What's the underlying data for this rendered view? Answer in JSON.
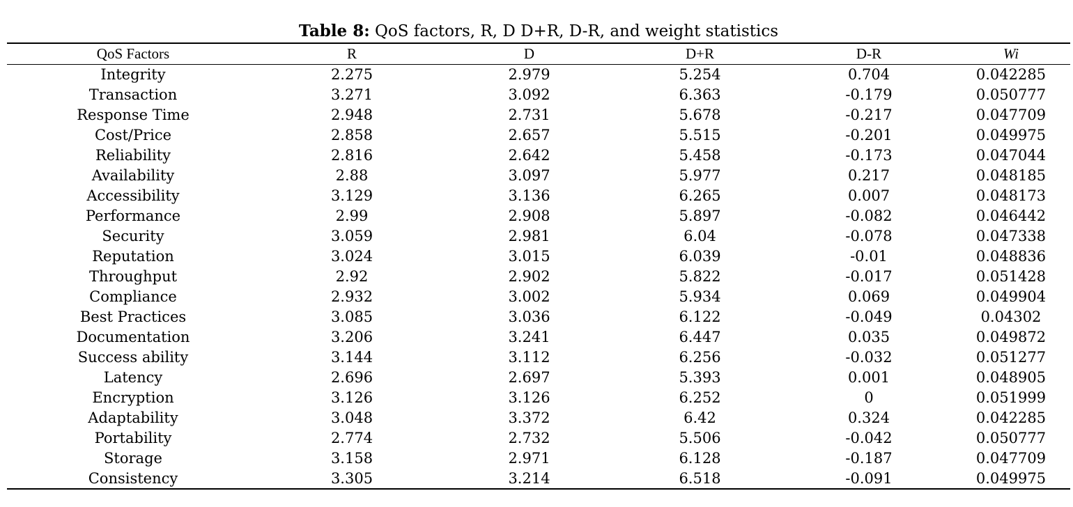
{
  "caption": {
    "label": "Table 8:",
    "text": " QoS factors, R, D D+R, D-R, and weight statistics"
  },
  "table": {
    "headers": [
      "QoS Factors",
      "R",
      "D",
      "D+R",
      "D-R",
      "Wi"
    ],
    "rows": [
      [
        "Integrity",
        "2.275",
        "2.979",
        "5.254",
        "0.704",
        "0.042285"
      ],
      [
        "Transaction",
        "3.271",
        "3.092",
        "6.363",
        "-0.179",
        "0.050777"
      ],
      [
        "Response Time",
        "2.948",
        "2.731",
        "5.678",
        "-0.217",
        "0.047709"
      ],
      [
        "Cost/Price",
        "2.858",
        "2.657",
        "5.515",
        "-0.201",
        "0.049975"
      ],
      [
        "Reliability",
        "2.816",
        "2.642",
        "5.458",
        "-0.173",
        "0.047044"
      ],
      [
        "Availability",
        "2.88",
        "3.097",
        "5.977",
        "0.217",
        "0.048185"
      ],
      [
        "Accessibility",
        "3.129",
        "3.136",
        "6.265",
        "0.007",
        "0.048173"
      ],
      [
        "Performance",
        "2.99",
        "2.908",
        "5.897",
        "-0.082",
        "0.046442"
      ],
      [
        "Security",
        "3.059",
        "2.981",
        "6.04",
        "-0.078",
        "0.047338"
      ],
      [
        "Reputation",
        "3.024",
        "3.015",
        "6.039",
        "-0.01",
        "0.048836"
      ],
      [
        "Throughput",
        "2.92",
        "2.902",
        "5.822",
        "-0.017",
        "0.051428"
      ],
      [
        "Compliance",
        "2.932",
        "3.002",
        "5.934",
        "0.069",
        "0.049904"
      ],
      [
        "Best Practices",
        "3.085",
        "3.036",
        "6.122",
        "-0.049",
        "0.04302"
      ],
      [
        "Documentation",
        "3.206",
        "3.241",
        "6.447",
        "0.035",
        "0.049872"
      ],
      [
        "Success ability",
        "3.144",
        "3.112",
        "6.256",
        "-0.032",
        "0.051277"
      ],
      [
        "Latency",
        "2.696",
        "2.697",
        "5.393",
        "0.001",
        "0.048905"
      ],
      [
        "Encryption",
        "3.126",
        "3.126",
        "6.252",
        "0",
        "0.051999"
      ],
      [
        "Adaptability",
        "3.048",
        "3.372",
        "6.42",
        "0.324",
        "0.042285"
      ],
      [
        "Portability",
        "2.774",
        "2.732",
        "5.506",
        "-0.042",
        "0.050777"
      ],
      [
        "Storage",
        "3.158",
        "2.971",
        "6.128",
        "-0.187",
        "0.047709"
      ],
      [
        "Consistency",
        "3.305",
        "3.214",
        "6.518",
        "-0.091",
        "0.049975"
      ]
    ]
  }
}
